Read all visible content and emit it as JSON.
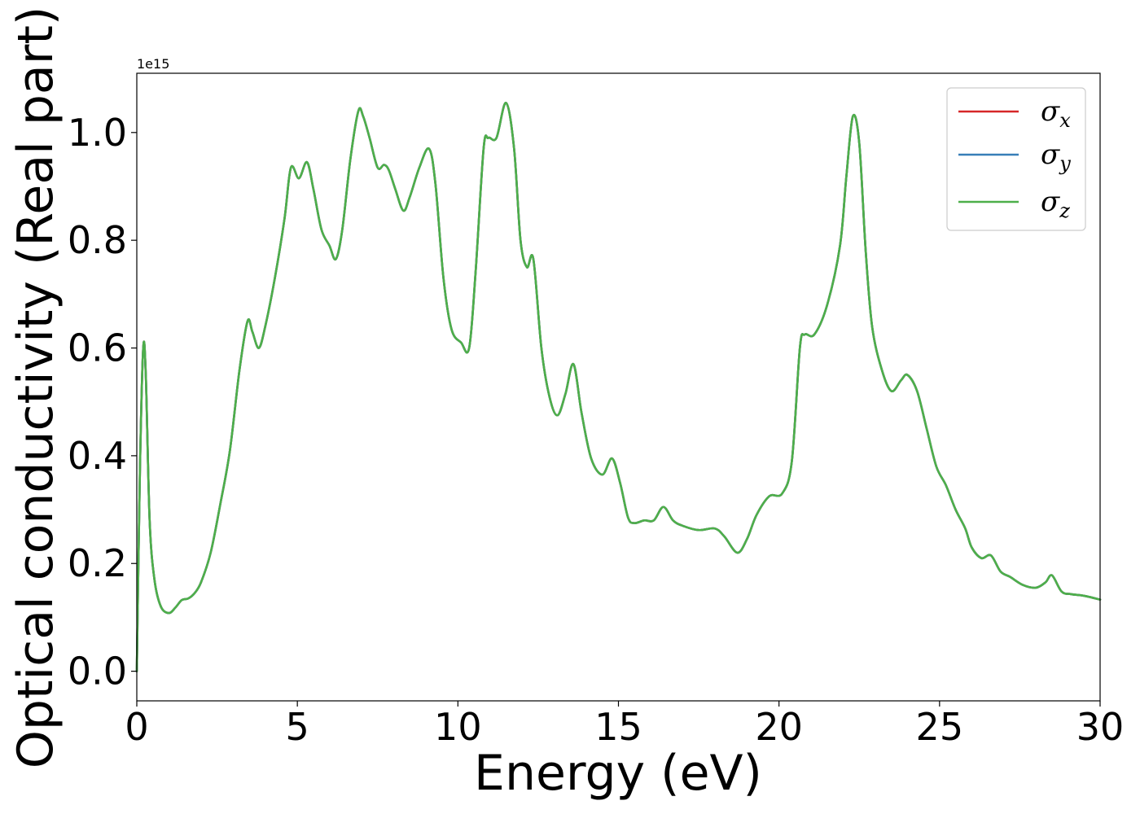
{
  "chart_data": {
    "type": "line",
    "title": "",
    "xlabel": "Energy (eV)",
    "ylabel": "Optical conductivity (Real part)",
    "y_offset_text": "1e15",
    "y_multiplier": 1000000000000000.0,
    "xlim": [
      0,
      30
    ],
    "ylim": [
      -0.055,
      1.11
    ],
    "xticks": [
      0,
      5,
      10,
      15,
      20,
      25,
      30
    ],
    "xtick_labels": [
      "0",
      "5",
      "10",
      "15",
      "20",
      "25",
      "30"
    ],
    "yticks": [
      0.0,
      0.2,
      0.4,
      0.6,
      0.8,
      1.0
    ],
    "ytick_labels": [
      "0.0",
      "0.2",
      "0.4",
      "0.6",
      "0.8",
      "1.0"
    ],
    "grid": false,
    "legend_position": "top-right",
    "x": [
      0,
      0.1,
      0.2,
      0.28,
      0.4,
      0.55,
      0.75,
      1.0,
      1.2,
      1.4,
      1.6,
      1.8,
      2.0,
      2.3,
      2.6,
      2.9,
      3.2,
      3.45,
      3.6,
      3.8,
      4.0,
      4.3,
      4.6,
      4.8,
      5.05,
      5.3,
      5.5,
      5.75,
      6.0,
      6.2,
      6.4,
      6.65,
      6.9,
      7.05,
      7.25,
      7.5,
      7.7,
      7.85,
      8.05,
      8.3,
      8.5,
      8.8,
      9.1,
      9.3,
      9.55,
      9.8,
      10.1,
      10.35,
      10.55,
      10.8,
      10.95,
      11.2,
      11.5,
      11.75,
      11.95,
      12.15,
      12.35,
      12.6,
      12.85,
      13.1,
      13.35,
      13.6,
      13.85,
      14.15,
      14.5,
      14.8,
      15.05,
      15.3,
      15.5,
      15.8,
      16.1,
      16.4,
      16.7,
      17.0,
      17.5,
      18.0,
      18.3,
      18.7,
      19.0,
      19.3,
      19.7,
      20.1,
      20.4,
      20.65,
      20.8,
      21.1,
      21.5,
      21.9,
      22.1,
      22.3,
      22.5,
      22.7,
      22.9,
      23.2,
      23.5,
      23.8,
      24.0,
      24.3,
      24.6,
      24.9,
      25.2,
      25.5,
      25.8,
      26.0,
      26.3,
      26.6,
      26.9,
      27.2,
      27.6,
      28.0,
      28.3,
      28.5,
      28.8,
      29.1,
      29.5,
      30.0
    ],
    "series": [
      {
        "name": "σx",
        "color": "#d62728",
        "values": [
          0.0,
          0.38,
          0.6,
          0.55,
          0.28,
          0.17,
          0.12,
          0.108,
          0.118,
          0.132,
          0.135,
          0.145,
          0.165,
          0.22,
          0.31,
          0.41,
          0.56,
          0.65,
          0.63,
          0.6,
          0.64,
          0.73,
          0.84,
          0.935,
          0.915,
          0.945,
          0.895,
          0.82,
          0.79,
          0.765,
          0.82,
          0.95,
          1.04,
          1.03,
          0.99,
          0.935,
          0.94,
          0.93,
          0.895,
          0.855,
          0.88,
          0.935,
          0.97,
          0.905,
          0.73,
          0.635,
          0.61,
          0.6,
          0.74,
          0.97,
          0.99,
          0.99,
          1.055,
          0.97,
          0.8,
          0.75,
          0.765,
          0.6,
          0.51,
          0.475,
          0.515,
          0.57,
          0.48,
          0.395,
          0.365,
          0.395,
          0.35,
          0.285,
          0.275,
          0.28,
          0.28,
          0.305,
          0.28,
          0.27,
          0.262,
          0.265,
          0.25,
          0.22,
          0.245,
          0.29,
          0.325,
          0.33,
          0.39,
          0.6,
          0.625,
          0.625,
          0.68,
          0.79,
          0.92,
          1.03,
          0.98,
          0.78,
          0.64,
          0.56,
          0.52,
          0.54,
          0.55,
          0.52,
          0.45,
          0.38,
          0.345,
          0.3,
          0.265,
          0.23,
          0.21,
          0.215,
          0.185,
          0.175,
          0.16,
          0.155,
          0.165,
          0.178,
          0.148,
          0.143,
          0.14,
          0.133
        ]
      },
      {
        "name": "σy",
        "color": "#377eb8",
        "values": [
          0.0,
          0.38,
          0.6,
          0.55,
          0.28,
          0.17,
          0.12,
          0.108,
          0.118,
          0.132,
          0.135,
          0.145,
          0.165,
          0.22,
          0.31,
          0.41,
          0.56,
          0.65,
          0.63,
          0.6,
          0.64,
          0.73,
          0.84,
          0.935,
          0.915,
          0.945,
          0.895,
          0.82,
          0.79,
          0.765,
          0.82,
          0.95,
          1.04,
          1.03,
          0.99,
          0.935,
          0.94,
          0.93,
          0.895,
          0.855,
          0.88,
          0.935,
          0.97,
          0.905,
          0.73,
          0.635,
          0.61,
          0.6,
          0.74,
          0.97,
          0.99,
          0.99,
          1.055,
          0.97,
          0.8,
          0.75,
          0.765,
          0.6,
          0.51,
          0.475,
          0.515,
          0.57,
          0.48,
          0.395,
          0.365,
          0.395,
          0.35,
          0.285,
          0.275,
          0.28,
          0.28,
          0.305,
          0.28,
          0.27,
          0.262,
          0.265,
          0.25,
          0.22,
          0.245,
          0.29,
          0.325,
          0.33,
          0.39,
          0.6,
          0.625,
          0.625,
          0.68,
          0.79,
          0.92,
          1.03,
          0.98,
          0.78,
          0.64,
          0.56,
          0.52,
          0.54,
          0.55,
          0.52,
          0.45,
          0.38,
          0.345,
          0.3,
          0.265,
          0.23,
          0.21,
          0.215,
          0.185,
          0.175,
          0.16,
          0.155,
          0.165,
          0.178,
          0.148,
          0.143,
          0.14,
          0.133
        ]
      },
      {
        "name": "σz",
        "color": "#4daf4a",
        "values": [
          0.0,
          0.38,
          0.6,
          0.55,
          0.28,
          0.17,
          0.12,
          0.108,
          0.118,
          0.132,
          0.135,
          0.145,
          0.165,
          0.22,
          0.31,
          0.41,
          0.56,
          0.65,
          0.63,
          0.6,
          0.64,
          0.73,
          0.84,
          0.935,
          0.915,
          0.945,
          0.895,
          0.82,
          0.79,
          0.765,
          0.82,
          0.95,
          1.04,
          1.03,
          0.99,
          0.935,
          0.94,
          0.93,
          0.895,
          0.855,
          0.88,
          0.935,
          0.97,
          0.905,
          0.73,
          0.635,
          0.61,
          0.6,
          0.74,
          0.97,
          0.99,
          0.99,
          1.055,
          0.97,
          0.8,
          0.75,
          0.765,
          0.6,
          0.51,
          0.475,
          0.515,
          0.57,
          0.48,
          0.395,
          0.365,
          0.395,
          0.35,
          0.285,
          0.275,
          0.28,
          0.28,
          0.305,
          0.28,
          0.27,
          0.262,
          0.265,
          0.25,
          0.22,
          0.245,
          0.29,
          0.325,
          0.33,
          0.39,
          0.6,
          0.625,
          0.625,
          0.68,
          0.79,
          0.92,
          1.03,
          0.98,
          0.78,
          0.64,
          0.56,
          0.52,
          0.54,
          0.55,
          0.52,
          0.45,
          0.38,
          0.345,
          0.3,
          0.265,
          0.23,
          0.21,
          0.215,
          0.185,
          0.175,
          0.16,
          0.155,
          0.165,
          0.178,
          0.148,
          0.143,
          0.14,
          0.133
        ]
      }
    ],
    "legend": [
      {
        "symbol": "σ",
        "subscript": "x",
        "color": "#d62728"
      },
      {
        "symbol": "σ",
        "subscript": "y",
        "color": "#377eb8"
      },
      {
        "symbol": "σ",
        "subscript": "z",
        "color": "#4daf4a"
      }
    ]
  }
}
